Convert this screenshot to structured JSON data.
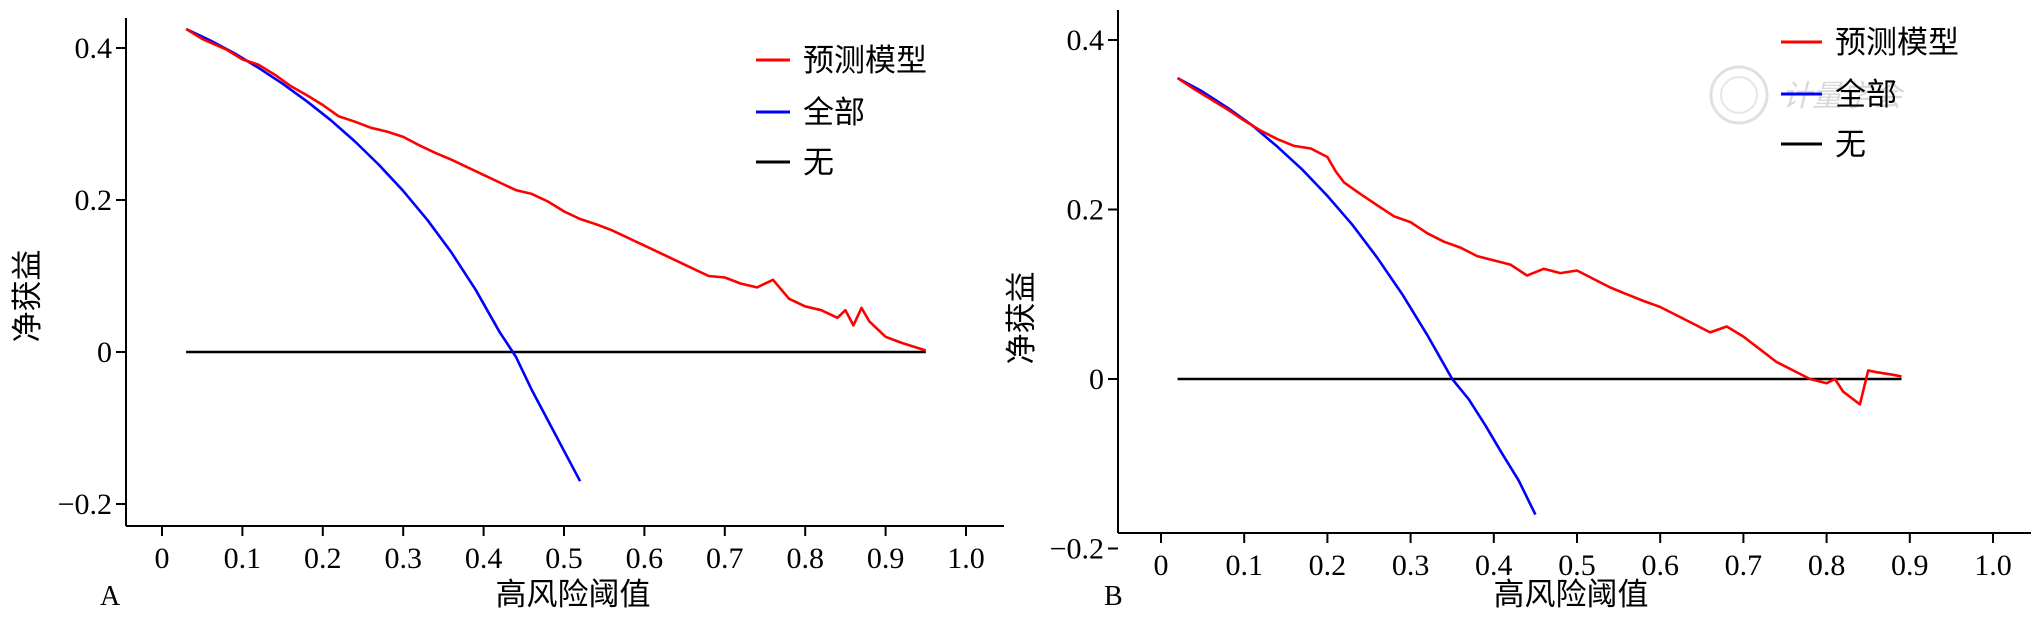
{
  "colors": {
    "model": "#ff0000",
    "all": "#0000ff",
    "none": "#000000",
    "watermark": "#d9d9d9"
  },
  "watermark": {
    "text": "计量学会",
    "icon": "seal-icon"
  },
  "chart_data": [
    {
      "type": "line",
      "panel_label": "A",
      "xlabel": "高风险阈值",
      "ylabel": "净获益",
      "xlim": [
        0,
        1.0
      ],
      "ylim": [
        -0.2,
        0.4
      ],
      "xticks": [
        "0",
        "0.1",
        "0.2",
        "0.3",
        "0.4",
        "0.5",
        "0.6",
        "0.7",
        "0.8",
        "0.9",
        "1.0"
      ],
      "yticks": [
        "−0.2",
        "0",
        "0.2",
        "0.4"
      ],
      "legend_position": "top-right",
      "series": [
        {
          "name": "预测模型",
          "color": "#ff0000",
          "x": [
            0.03,
            0.05,
            0.08,
            0.1,
            0.12,
            0.14,
            0.16,
            0.18,
            0.2,
            0.22,
            0.24,
            0.26,
            0.28,
            0.3,
            0.32,
            0.34,
            0.36,
            0.38,
            0.4,
            0.42,
            0.44,
            0.46,
            0.48,
            0.5,
            0.52,
            0.54,
            0.56,
            0.58,
            0.6,
            0.62,
            0.64,
            0.66,
            0.68,
            0.7,
            0.72,
            0.74,
            0.76,
            0.78,
            0.8,
            0.82,
            0.84,
            0.85,
            0.86,
            0.87,
            0.88,
            0.9,
            0.92,
            0.95
          ],
          "y": [
            0.425,
            0.412,
            0.398,
            0.385,
            0.378,
            0.365,
            0.35,
            0.338,
            0.325,
            0.31,
            0.303,
            0.295,
            0.29,
            0.283,
            0.272,
            0.262,
            0.253,
            0.243,
            0.233,
            0.223,
            0.213,
            0.208,
            0.198,
            0.185,
            0.175,
            0.168,
            0.16,
            0.15,
            0.14,
            0.13,
            0.12,
            0.11,
            0.1,
            0.098,
            0.09,
            0.085,
            0.095,
            0.07,
            0.06,
            0.055,
            0.045,
            0.055,
            0.035,
            0.058,
            0.04,
            0.02,
            0.012,
            0.002
          ]
        },
        {
          "name": "全部",
          "color": "#0000ff",
          "x": [
            0.03,
            0.06,
            0.09,
            0.12,
            0.15,
            0.18,
            0.21,
            0.24,
            0.27,
            0.3,
            0.33,
            0.36,
            0.39,
            0.42,
            0.44,
            0.46,
            0.48,
            0.5,
            0.52
          ],
          "y": [
            0.425,
            0.41,
            0.393,
            0.374,
            0.353,
            0.33,
            0.305,
            0.277,
            0.246,
            0.212,
            0.174,
            0.131,
            0.082,
            0.026,
            -0.006,
            -0.05,
            -0.09,
            -0.13,
            -0.17
          ]
        },
        {
          "name": "无",
          "color": "#000000",
          "x": [
            0.03,
            0.95
          ],
          "y": [
            0,
            0
          ]
        }
      ]
    },
    {
      "type": "line",
      "panel_label": "B",
      "xlabel": "高风险阈值",
      "ylabel": "净获益",
      "xlim": [
        0,
        1.0
      ],
      "ylim": [
        -0.2,
        0.4
      ],
      "xticks": [
        "0",
        "0.1",
        "0.2",
        "0.3",
        "0.4",
        "0.5",
        "0.6",
        "0.7",
        "0.8",
        "0.9",
        "1.0"
      ],
      "yticks": [
        "−0.2",
        "0",
        "0.2",
        "0.4"
      ],
      "legend_position": "top-right",
      "series": [
        {
          "name": "预测模型",
          "color": "#ff0000",
          "x": [
            0.02,
            0.04,
            0.06,
            0.08,
            0.1,
            0.12,
            0.14,
            0.16,
            0.18,
            0.2,
            0.21,
            0.22,
            0.24,
            0.26,
            0.28,
            0.3,
            0.32,
            0.34,
            0.36,
            0.38,
            0.4,
            0.42,
            0.44,
            0.46,
            0.48,
            0.5,
            0.52,
            0.54,
            0.56,
            0.58,
            0.6,
            0.62,
            0.64,
            0.66,
            0.68,
            0.7,
            0.72,
            0.74,
            0.76,
            0.78,
            0.8,
            0.81,
            0.82,
            0.84,
            0.85,
            0.86,
            0.88,
            0.89
          ],
          "y": [
            0.355,
            0.342,
            0.33,
            0.318,
            0.305,
            0.293,
            0.283,
            0.275,
            0.272,
            0.262,
            0.245,
            0.232,
            0.218,
            0.205,
            0.192,
            0.185,
            0.172,
            0.162,
            0.155,
            0.145,
            0.14,
            0.135,
            0.122,
            0.13,
            0.125,
            0.128,
            0.118,
            0.108,
            0.1,
            0.092,
            0.085,
            0.075,
            0.065,
            0.055,
            0.062,
            0.05,
            0.035,
            0.02,
            0.01,
            0.0,
            -0.005,
            0.0,
            -0.015,
            -0.03,
            0.01,
            0.008,
            0.005,
            0.003
          ]
        },
        {
          "name": "全部",
          "color": "#0000ff",
          "x": [
            0.02,
            0.05,
            0.08,
            0.11,
            0.14,
            0.17,
            0.2,
            0.23,
            0.26,
            0.29,
            0.32,
            0.35,
            0.37,
            0.39,
            0.41,
            0.43,
            0.45
          ],
          "y": [
            0.355,
            0.339,
            0.32,
            0.299,
            0.274,
            0.247,
            0.216,
            0.182,
            0.143,
            0.1,
            0.052,
            0.0,
            -0.024,
            -0.055,
            -0.088,
            -0.12,
            -0.16
          ]
        },
        {
          "name": "无",
          "color": "#000000",
          "x": [
            0.02,
            0.89
          ],
          "y": [
            0,
            0
          ]
        }
      ]
    }
  ]
}
